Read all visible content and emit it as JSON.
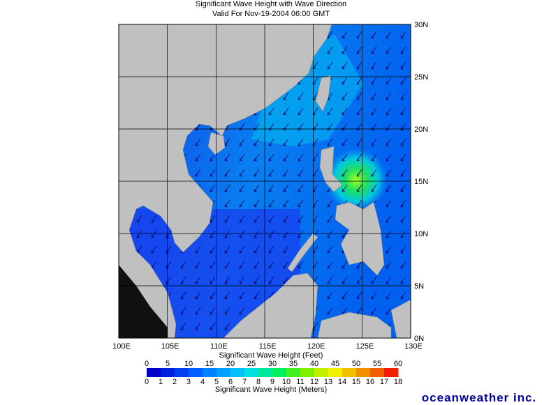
{
  "header": {
    "title": "Significant Wave Height with Wave Direction",
    "subtitle": "Valid For Nov-19-2004 06:00 GMT"
  },
  "map": {
    "lat_labels": [
      "30N",
      "25N",
      "20N",
      "15N",
      "10N",
      "5N",
      "0N"
    ],
    "lon_labels": [
      "100E",
      "105E",
      "110E",
      "115E",
      "120E",
      "125E",
      "130E"
    ]
  },
  "legend": {
    "feet_title": "Significant Wave Height (Feet)",
    "feet_ticks": [
      0,
      5,
      10,
      15,
      20,
      25,
      30,
      35,
      40,
      45,
      50,
      55,
      60
    ],
    "meters_title": "Significant Wave Height (Meters)",
    "meters_ticks": [
      0,
      1,
      2,
      3,
      4,
      5,
      6,
      7,
      8,
      9,
      10,
      11,
      12,
      13,
      14,
      15,
      16,
      17,
      18
    ]
  },
  "logo": "oceanweather inc."
}
